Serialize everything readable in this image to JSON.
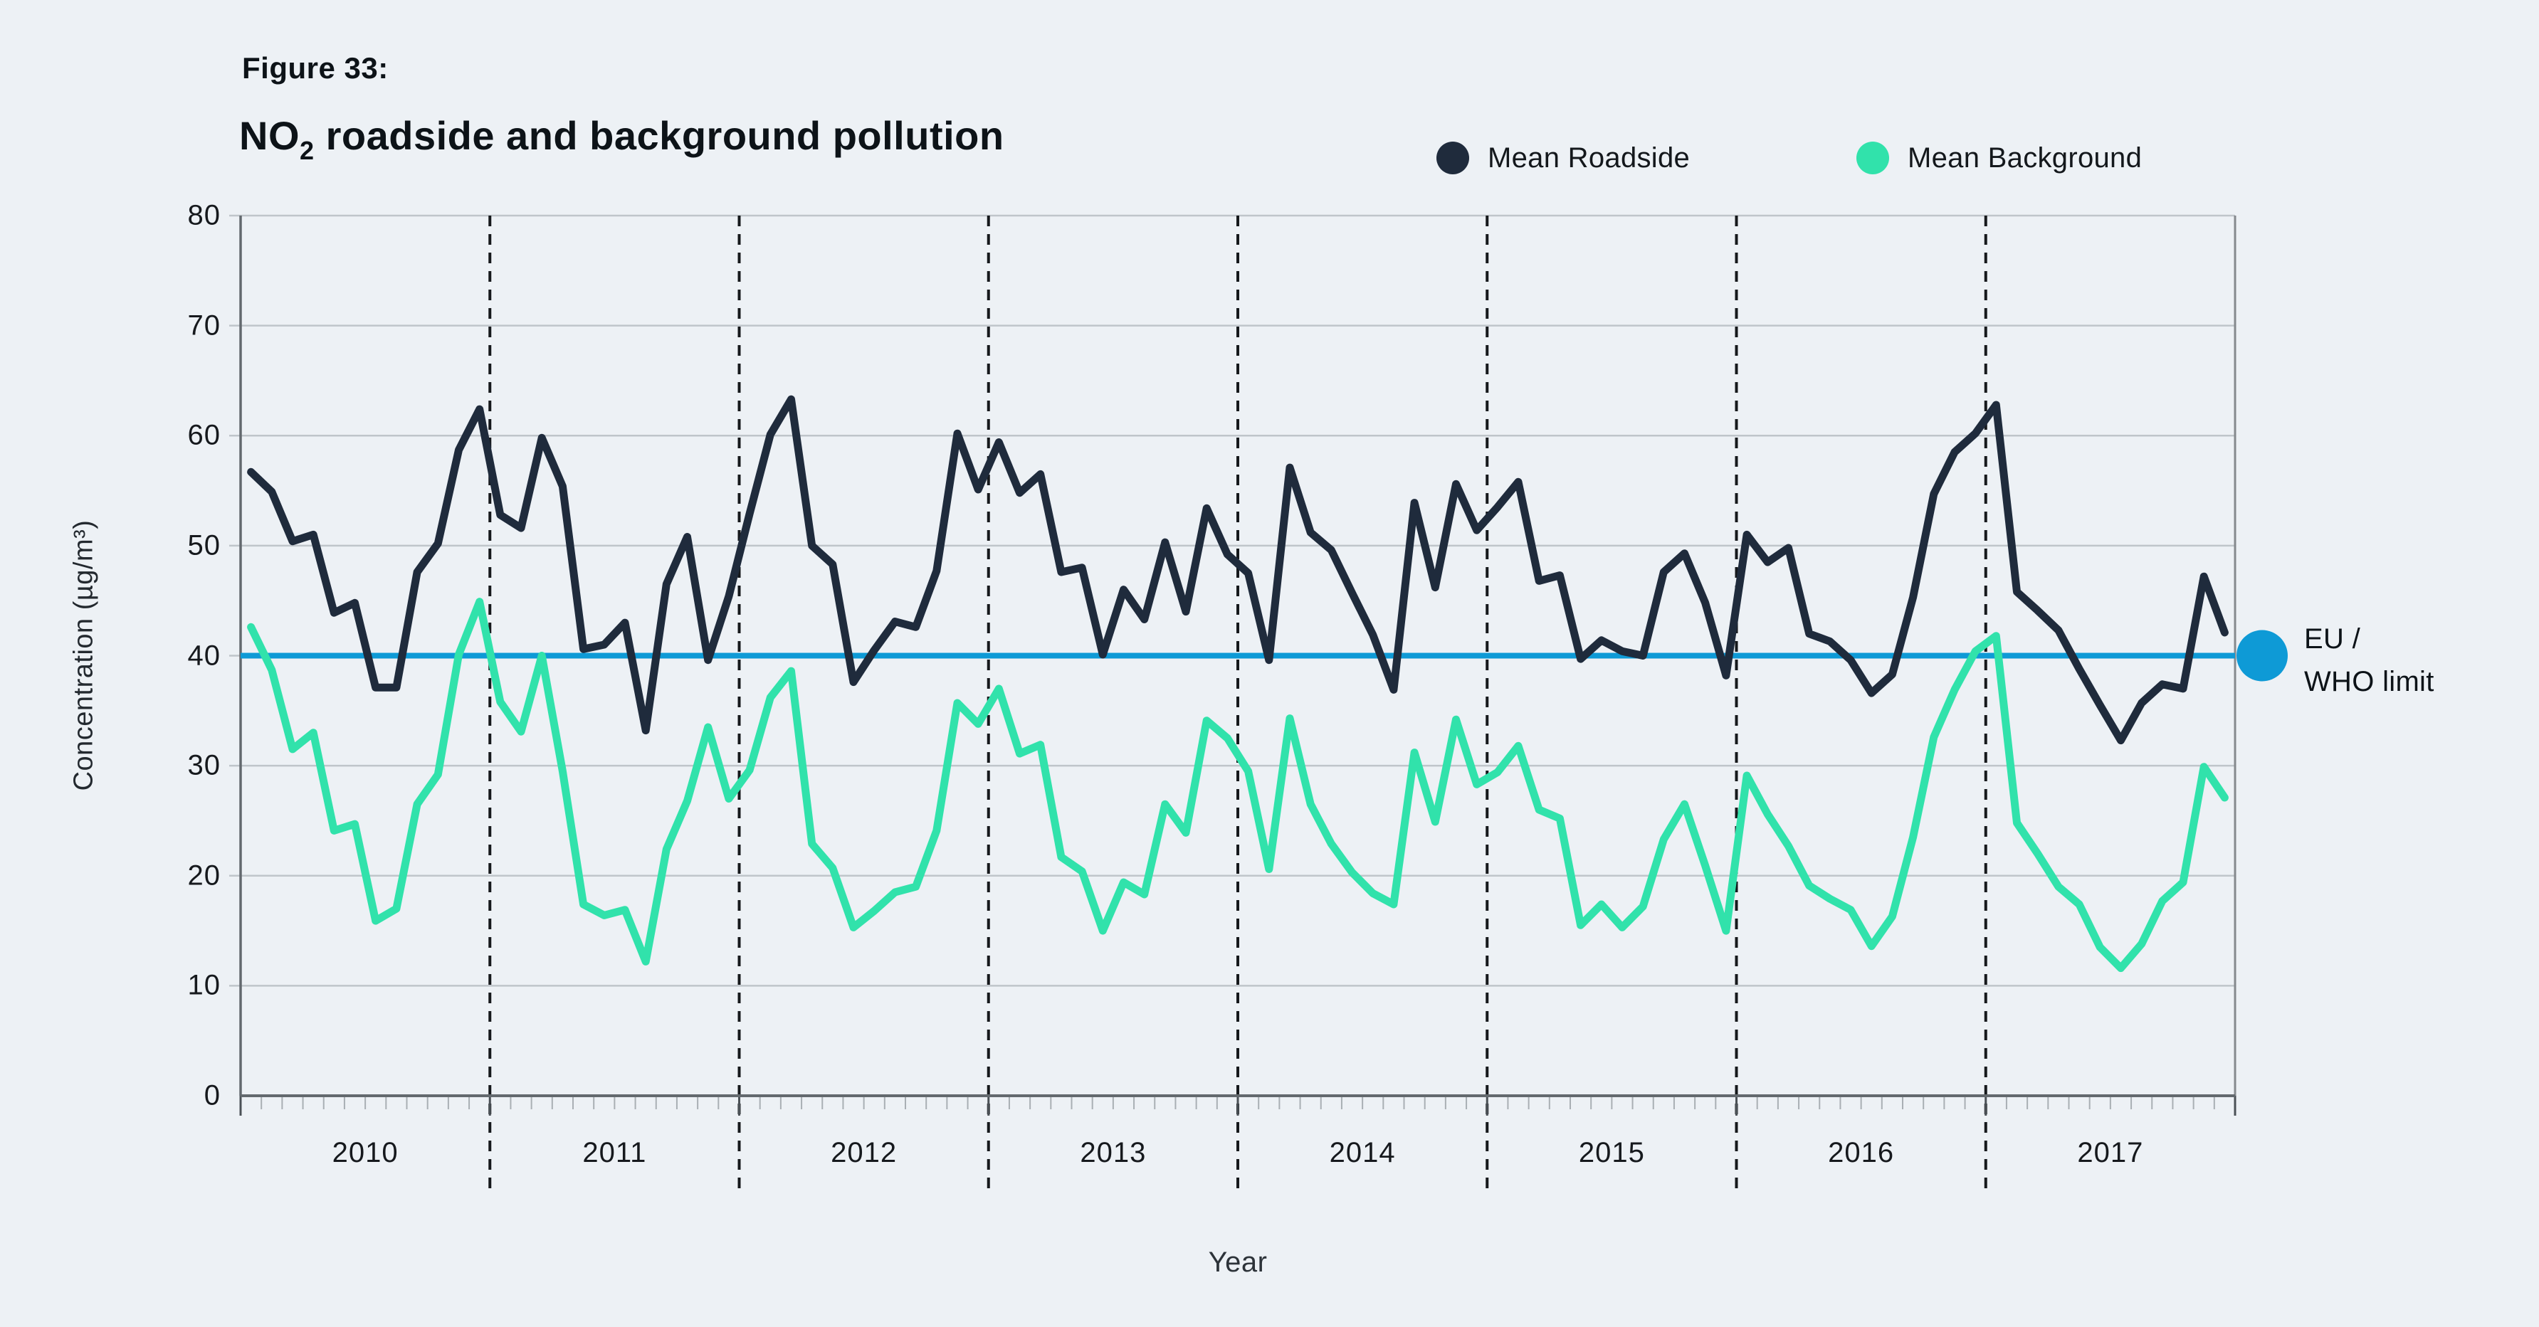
{
  "title": {
    "figure_label": "Figure 33:",
    "main_prefix": "NO",
    "main_sub": "2",
    "main_suffix": " roadside and background pollution"
  },
  "legend": [
    {
      "label": "Mean Roadside",
      "color": "#1f2b3c"
    },
    {
      "label": "Mean Background",
      "color": "#31e2ab"
    }
  ],
  "limit": {
    "label_line1": "EU /",
    "label_line2": "WHO limit",
    "value": 40,
    "color": "#0e9ad6"
  },
  "axes": {
    "y_label": "Concentration (µg/m³)",
    "x_label": "Year",
    "y_ticks": [
      0,
      10,
      20,
      30,
      40,
      50,
      60,
      70,
      80
    ],
    "y_max": 80,
    "year_labels": [
      "2010",
      "2011",
      "2012",
      "2013",
      "2014",
      "2015",
      "2016",
      "2017"
    ]
  },
  "style": {
    "background": "#edf1f5",
    "grid": "#bfc5ca",
    "axis": "#63696e",
    "right_border": "#85898d",
    "dash_line": "#16191c",
    "minor_tick": "#a9afb4",
    "year_tick": "#4b5156"
  },
  "chart_data": {
    "type": "line",
    "title": "NO2 roadside and background pollution",
    "xlabel": "Year",
    "ylabel": "Concentration (µg/m³)",
    "ylim": [
      0,
      80
    ],
    "grid": "horizontal solid every 10, vertical dashed at year boundaries",
    "legend_position": "top-right above plot",
    "x_monthly_start": "2010-01",
    "x_monthly_end": "2017-12",
    "x_years": [
      2010,
      2011,
      2012,
      2013,
      2014,
      2015,
      2016,
      2017
    ],
    "reference_line": {
      "label": "EU / WHO limit",
      "value": 40
    },
    "series": [
      {
        "name": "Mean Roadside",
        "color": "#1f2b3c",
        "values": [
          56.7,
          54.9,
          50.4,
          51.0,
          43.9,
          44.8,
          37.1,
          37.1,
          47.6,
          50.2,
          58.7,
          62.4,
          52.8,
          51.6,
          59.8,
          55.4,
          40.6,
          41.0,
          43.0,
          33.2,
          46.5,
          50.8,
          39.6,
          45.4,
          52.9,
          60.1,
          63.3,
          50.0,
          48.3,
          37.6,
          40.5,
          43.1,
          42.6,
          47.7,
          60.2,
          55.1,
          59.4,
          54.8,
          56.5,
          47.6,
          48.0,
          40.1,
          46.0,
          43.3,
          50.3,
          44.0,
          53.4,
          49.2,
          47.5,
          39.6,
          57.1,
          51.2,
          49.6,
          45.7,
          41.9,
          36.9,
          53.9,
          46.2,
          55.6,
          51.4,
          53.5,
          55.8,
          46.8,
          47.3,
          39.7,
          41.4,
          40.4,
          40.0,
          47.6,
          49.3,
          44.8,
          38.2,
          51.0,
          48.5,
          49.8,
          42.0,
          41.3,
          39.6,
          36.6,
          38.3,
          45.3,
          54.7,
          58.5,
          60.2,
          62.8,
          45.8,
          44.1,
          42.3,
          38.8,
          35.5,
          32.3,
          35.7,
          37.4,
          37.0,
          47.2,
          42.1
        ]
      },
      {
        "name": "Mean Background",
        "color": "#31e2ab",
        "values": [
          42.6,
          38.7,
          31.5,
          33.0,
          24.1,
          24.7,
          15.9,
          17.0,
          26.5,
          29.2,
          40.1,
          44.9,
          35.8,
          33.1,
          40.0,
          29.5,
          17.4,
          16.4,
          16.9,
          12.2,
          22.4,
          26.8,
          33.5,
          27.0,
          29.6,
          36.2,
          38.6,
          22.9,
          20.7,
          15.3,
          16.8,
          18.5,
          19.0,
          24.1,
          35.7,
          33.8,
          37.0,
          31.1,
          31.9,
          21.7,
          20.4,
          15.0,
          19.4,
          18.3,
          26.5,
          23.9,
          34.1,
          32.5,
          29.5,
          20.6,
          34.3,
          26.5,
          22.9,
          20.3,
          18.4,
          17.4,
          31.2,
          24.9,
          34.2,
          28.3,
          29.4,
          31.8,
          26.0,
          25.2,
          15.5,
          17.4,
          15.3,
          17.2,
          23.3,
          26.5,
          20.9,
          15.0,
          29.1,
          25.6,
          22.7,
          19.1,
          17.9,
          16.9,
          13.6,
          16.3,
          23.5,
          32.6,
          36.9,
          40.4,
          41.8,
          24.8,
          22.0,
          19.0,
          17.4,
          13.5,
          11.6,
          13.8,
          17.7,
          19.4,
          29.9,
          27.1
        ]
      }
    ]
  }
}
